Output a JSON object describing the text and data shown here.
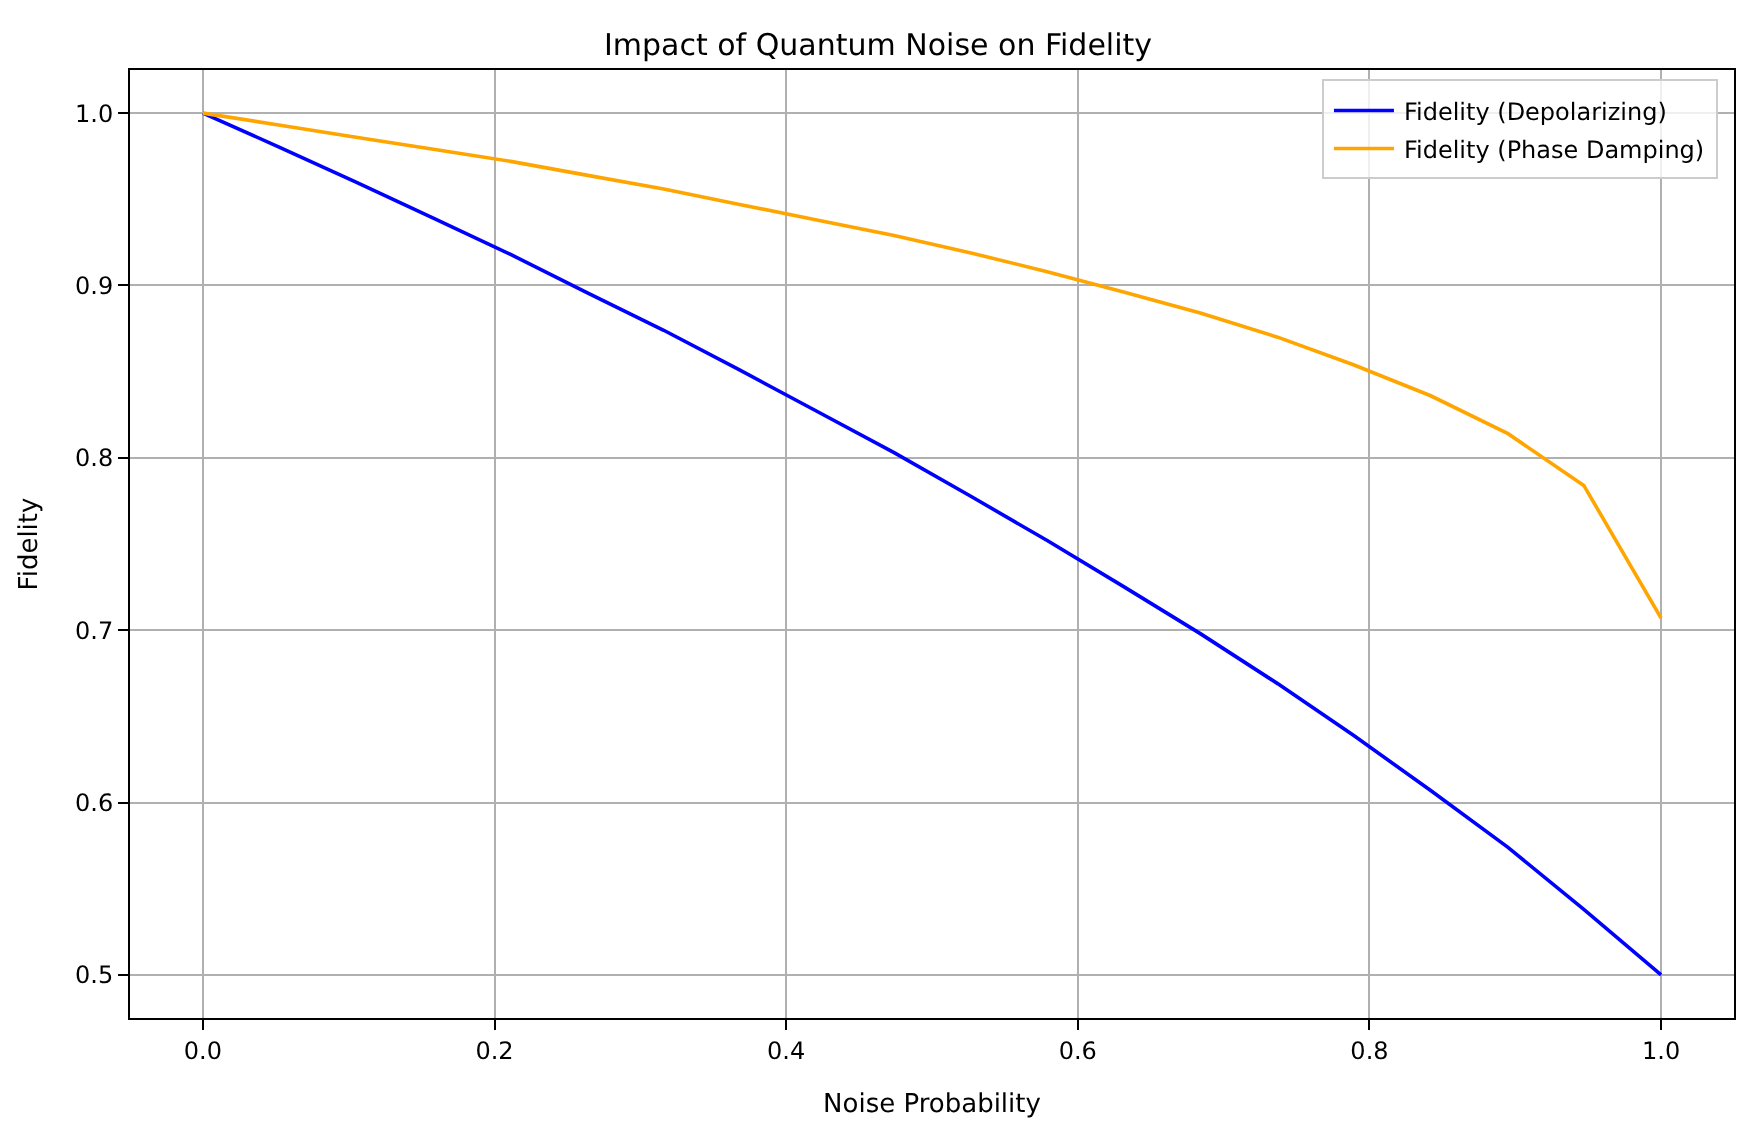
{
  "chart_data": {
    "type": "line",
    "title": "Impact of Quantum Noise on Fidelity",
    "xlabel": "Noise Probability",
    "ylabel": "Fidelity",
    "x": [
      0,
      0.053,
      0.105,
      0.158,
      0.211,
      0.263,
      0.316,
      0.368,
      0.421,
      0.474,
      0.526,
      0.579,
      0.632,
      0.684,
      0.737,
      0.789,
      0.842,
      0.895,
      0.947,
      1
    ],
    "series": [
      {
        "name": "Fidelity (Depolarizing)",
        "color": "#0000ff",
        "values": [
          1,
          0.98,
          0.96,
          0.939,
          0.918,
          0.896,
          0.874,
          0.851,
          0.827,
          0.803,
          0.778,
          0.752,
          0.725,
          0.698,
          0.669,
          0.639,
          0.607,
          0.574,
          0.538,
          0.5
        ]
      },
      {
        "name": "Fidelity (Phase Damping)",
        "color": "#ffa500",
        "values": [
          1,
          0.993,
          0.986,
          0.979,
          0.972,
          0.964,
          0.956,
          0.947,
          0.938,
          0.929,
          0.919,
          0.908,
          0.896,
          0.884,
          0.87,
          0.854,
          0.836,
          0.814,
          0.784,
          0.707
        ]
      }
    ],
    "xlim": [
      -0.05,
      1.05
    ],
    "ylim": [
      0.475,
      1.025
    ],
    "xticks": [
      {
        "value": 0,
        "label": "0.0"
      },
      0.2,
      0.4,
      0.6,
      0.8,
      {
        "value": 1,
        "label": "1.0"
      }
    ],
    "yticks": [
      0.5,
      0.6,
      0.7,
      0.8,
      0.9,
      {
        "value": 1,
        "label": "1.0"
      }
    ],
    "grid": true,
    "legend": "top right",
    "marker": "none",
    "line_style": "solid"
  }
}
